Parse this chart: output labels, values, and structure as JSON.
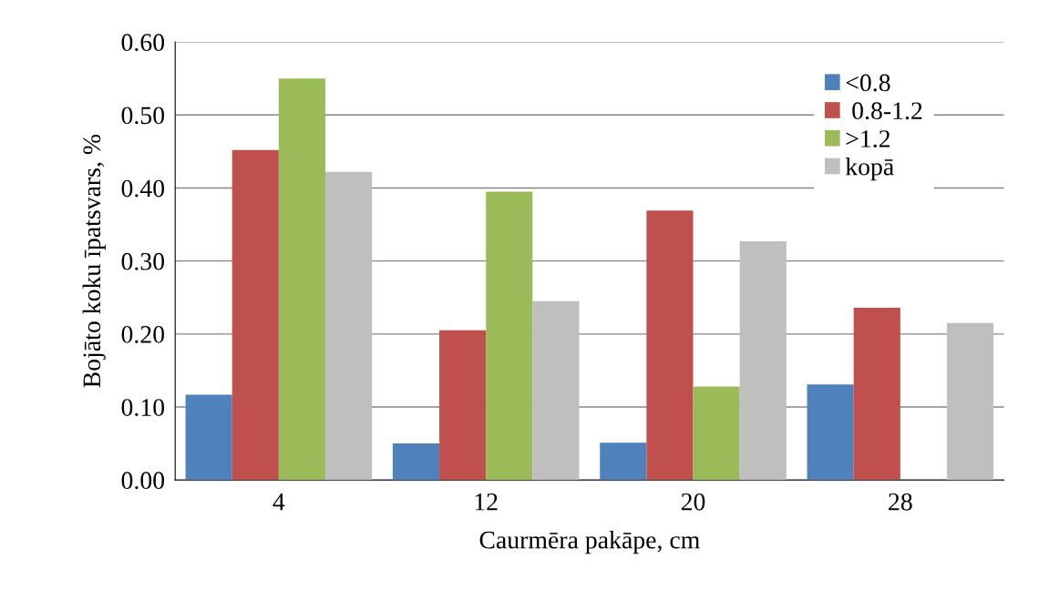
{
  "chart_data": {
    "type": "bar",
    "xlabel": "Caurmēra pakāpe, cm",
    "ylabel": "Bojāto koku īpatsvars, %",
    "categories": [
      "4",
      "12",
      "20",
      "28"
    ],
    "series": [
      {
        "name": "<0.8",
        "color": "#4f81bd",
        "values": [
          0.117,
          0.05,
          0.051,
          0.131
        ]
      },
      {
        "name": " 0.8-1.2",
        "color": "#c0504d",
        "values": [
          0.452,
          0.205,
          0.369,
          0.236
        ]
      },
      {
        "name": ">1.2",
        "color": "#9bbb59",
        "values": [
          0.55,
          0.395,
          0.128,
          null
        ]
      },
      {
        "name": "kopā",
        "color": "#bfbfbf",
        "values": [
          0.422,
          0.245,
          0.327,
          0.215
        ]
      }
    ],
    "ylim": [
      0,
      0.6
    ],
    "yticks": [
      {
        "value": 0,
        "label": "0.00"
      },
      {
        "value": 0.1,
        "label": "0.10"
      },
      {
        "value": 0.2,
        "label": "0.20"
      },
      {
        "value": 0.3,
        "label": "0.30"
      },
      {
        "value": 0.4,
        "label": "0.40"
      },
      {
        "value": 0.5,
        "label": "0.50"
      },
      {
        "value": 0.6,
        "label": "0.60"
      }
    ],
    "grid": "y",
    "legend": "top right"
  }
}
